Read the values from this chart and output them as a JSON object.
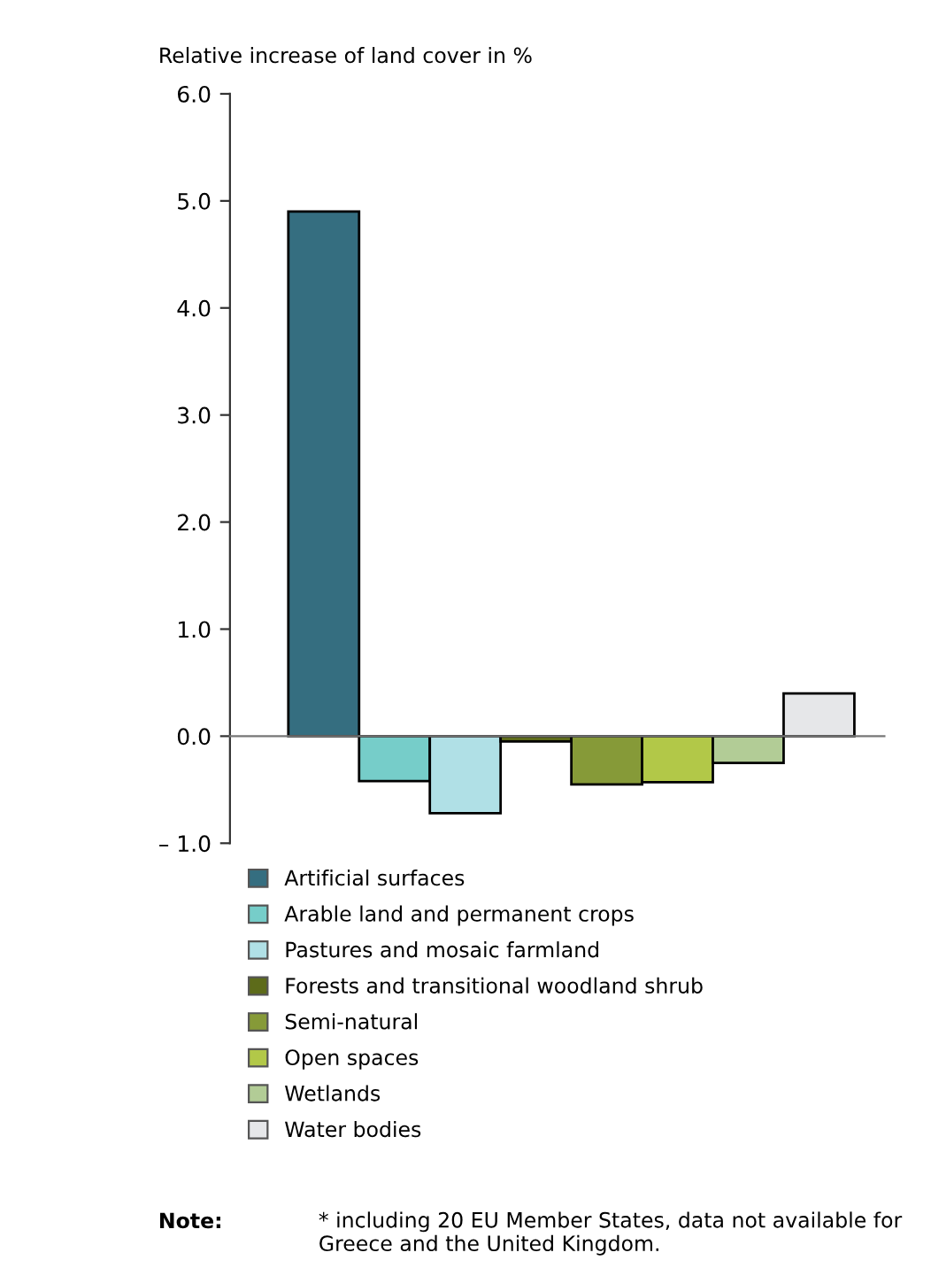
{
  "chart_data": {
    "type": "bar",
    "ylabel": "Relative increase of land cover in %",
    "categories": [
      null
    ],
    "series": [
      {
        "name": "Artificial surfaces",
        "color": "#356e80",
        "values": [
          4.9
        ]
      },
      {
        "name": "Arable land and permanent crops",
        "color": "#76cdc9",
        "values": [
          -0.42
        ]
      },
      {
        "name": "Pastures and mosaic farmland",
        "color": "#b0e0e6",
        "values": [
          -0.72
        ]
      },
      {
        "name": "Forests and transitional woodland shrub",
        "color": "#5d6b1a",
        "values": [
          -0.05
        ]
      },
      {
        "name": "Semi-natural",
        "color": "#869a38",
        "values": [
          -0.45
        ]
      },
      {
        "name": "Open spaces",
        "color": "#b2c848",
        "values": [
          -0.43
        ]
      },
      {
        "name": "Wetlands",
        "color": "#b2cc96",
        "values": [
          -0.25
        ]
      },
      {
        "name": "Water bodies",
        "color": "#e6e7e9",
        "values": [
          0.4
        ]
      }
    ],
    "ylim": [
      -1,
      6
    ],
    "yticks": [
      {
        "value": -1,
        "label": "– 1.0"
      },
      {
        "value": 0,
        "label": "0.0"
      },
      {
        "value": 1,
        "label": "1.0"
      },
      {
        "value": 2,
        "label": "2.0"
      },
      {
        "value": 3,
        "label": "3.0"
      },
      {
        "value": 4,
        "label": "4.0"
      },
      {
        "value": 5,
        "label": "5.0"
      },
      {
        "value": 6,
        "label": "6.0"
      }
    ],
    "legend": "bottom left",
    "annotations": [
      "Note:",
      "* including 20 EU Member States, data not available for Greece and the United Kingdom."
    ]
  }
}
